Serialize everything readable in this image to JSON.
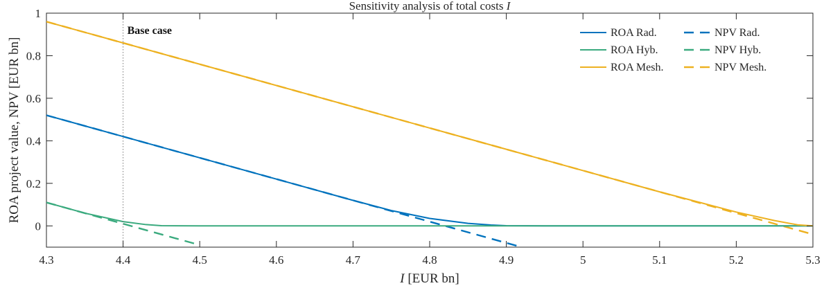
{
  "chart_data": {
    "type": "line",
    "title_prefix": "Sensitivity analysis of total costs",
    "title_var": "I",
    "xlabel_var": "I",
    "xlabel_unit": "[EUR bn]",
    "ylabel": "ROA project value, NPV [EUR bn]",
    "xlim": [
      4.3,
      5.3
    ],
    "ylim": [
      -0.1,
      1.0
    ],
    "xticks": [
      "4.3",
      "4.4",
      "4.5",
      "4.6",
      "4.7",
      "4.8",
      "4.9",
      "5",
      "5.1",
      "5.2",
      "5.3"
    ],
    "yticks": [
      "0",
      "0.2",
      "0.4",
      "0.6",
      "0.8",
      "1"
    ],
    "grid": false,
    "legend_position": "top-right",
    "annotations": [
      {
        "label": "Base case",
        "x": 4.4,
        "style": "dotted-vertical"
      }
    ],
    "series": [
      {
        "name": "ROA Rad.",
        "color": "#0072BD",
        "dash": "solid",
        "x": [
          4.3,
          4.4,
          4.5,
          4.6,
          4.7,
          4.75,
          4.8,
          4.85,
          4.88,
          4.9,
          4.95,
          5.0,
          5.3
        ],
        "y": [
          0.52,
          0.42,
          0.32,
          0.22,
          0.12,
          0.072,
          0.035,
          0.012,
          0.004,
          0.001,
          0.0,
          0.0,
          0.0
        ]
      },
      {
        "name": "ROA Hyb.",
        "color": "#3AAA7E",
        "dash": "solid",
        "x": [
          4.3,
          4.35,
          4.4,
          4.43,
          4.45,
          4.5,
          5.3
        ],
        "y": [
          0.11,
          0.06,
          0.02,
          0.006,
          0.001,
          0.0,
          0.0
        ]
      },
      {
        "name": "ROA Mesh.",
        "color": "#EDB120",
        "dash": "solid",
        "x": [
          4.3,
          4.5,
          4.7,
          4.9,
          5.1,
          5.2,
          5.25,
          5.28,
          5.3
        ],
        "y": [
          0.96,
          0.76,
          0.56,
          0.36,
          0.16,
          0.065,
          0.025,
          0.005,
          0.0
        ]
      },
      {
        "name": "NPV Rad.",
        "color": "#0072BD",
        "dash": "dashed",
        "x": [
          4.3,
          4.92
        ],
        "y": [
          0.52,
          -0.1
        ]
      },
      {
        "name": "NPV Hyb.",
        "color": "#3AAA7E",
        "dash": "dashed",
        "x": [
          4.3,
          4.5
        ],
        "y": [
          0.11,
          -0.09
        ]
      },
      {
        "name": "NPV Mesh.",
        "color": "#EDB120",
        "dash": "dashed",
        "x": [
          4.3,
          5.3
        ],
        "y": [
          0.96,
          -0.04
        ]
      }
    ]
  }
}
